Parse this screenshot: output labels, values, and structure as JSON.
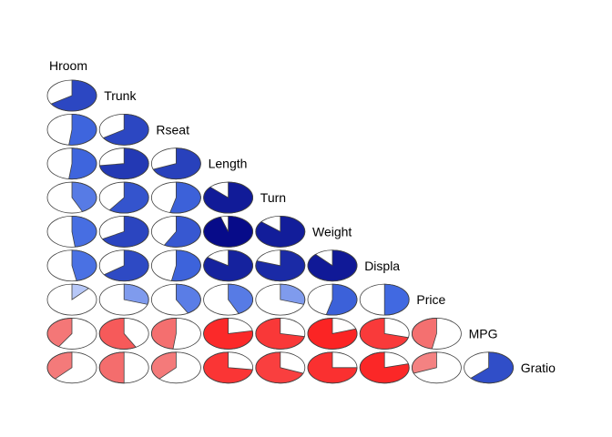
{
  "chart_data": {
    "type": "heatmap",
    "subtype": "corrgram-pie-lower",
    "variables": [
      "Hroom",
      "Trunk",
      "Rseat",
      "Length",
      "Turn",
      "Weight",
      "Displa",
      "Price",
      "MPG",
      "Gratio"
    ],
    "colors": {
      "negative_strong": "#FF0000",
      "negative_light": "#F5A3A3",
      "positive_strong": "#00007F",
      "positive_light": "#DCE6FF",
      "outline": "#404040"
    },
    "correlations": [
      [
        0.66
      ],
      [
        0.52,
        0.66
      ],
      [
        0.52,
        0.73,
        0.69
      ],
      [
        0.43,
        0.6,
        0.54,
        0.87
      ],
      [
        0.48,
        0.67,
        0.58,
        0.95,
        0.86
      ],
      [
        0.47,
        0.65,
        0.53,
        0.84,
        0.8,
        0.88
      ],
      [
        0.12,
        0.3,
        0.42,
        0.43,
        0.3,
        0.54,
        0.5
      ],
      [
        -0.41,
        -0.58,
        -0.48,
        -0.78,
        -0.72,
        -0.8,
        -0.71,
        -0.47
      ],
      [
        -0.38,
        -0.5,
        -0.38,
        -0.73,
        -0.69,
        -0.75,
        -0.79,
        -0.31,
        0.63
      ]
    ]
  }
}
